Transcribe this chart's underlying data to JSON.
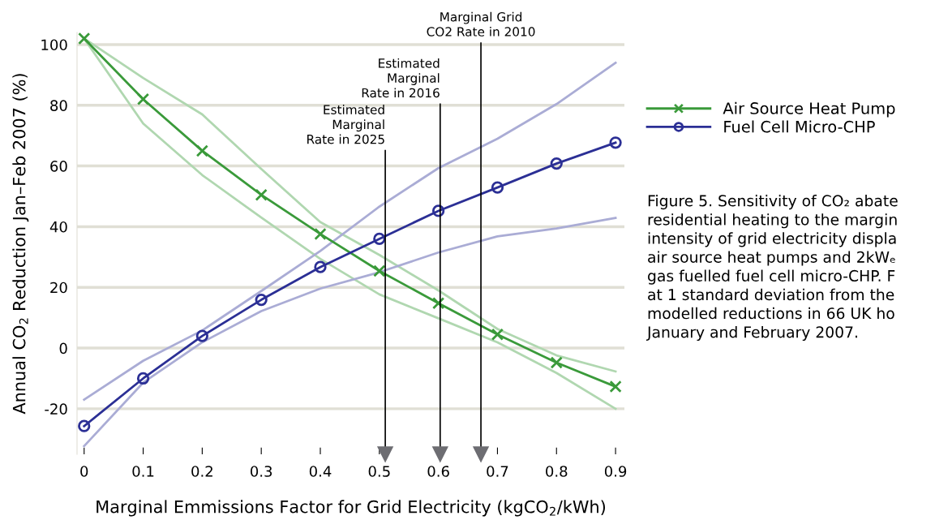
{
  "chart_data": {
    "type": "line",
    "xlabel": "Marginal Emmissions Factor for Grid Electricity (kgCO$_{2}$/kWh)",
    "ylabel": "Annual CO$_{2}$ Reduction Jan–Feb 2007 (%)",
    "x": [
      0,
      0.1,
      0.2,
      0.3,
      0.4,
      0.5,
      0.6,
      0.7,
      0.8,
      0.9
    ],
    "series": [
      {
        "color": "#b0d7b0",
        "marker": "none",
        "values": [
          102,
          89,
          77,
          59,
          41.5,
          30.7,
          19,
          6.3,
          -2.4,
          -7.7
        ]
      },
      {
        "color": "#b0d7b0",
        "marker": "none",
        "values": [
          102,
          74,
          57,
          43,
          29.4,
          17.7,
          9.8,
          1.9,
          -8.2,
          -20
        ]
      },
      {
        "color": "#aaacd5",
        "marker": "none",
        "values": [
          -17,
          -4.2,
          5.8,
          18.8,
          32,
          46.6,
          59.3,
          69,
          80.4,
          94
        ]
      },
      {
        "color": "#aaacd5",
        "marker": "none",
        "values": [
          -32.3,
          -11.4,
          1.9,
          12.2,
          19.6,
          25,
          31.5,
          36.8,
          39.4,
          42.9
        ]
      },
      {
        "name": "Air Source Heat Pump",
        "color": "#3a9a3a",
        "marker": "cross",
        "values": [
          102,
          82,
          65,
          50.5,
          37.6,
          25.4,
          14.8,
          4.5,
          -4.8,
          -12.7
        ]
      },
      {
        "name": "Fuel Cell Micro-CHP",
        "color": "#2b2f95",
        "marker": "circle",
        "values": [
          -25.7,
          -10,
          4,
          15.9,
          26.7,
          36,
          45.2,
          52.9,
          60.8,
          67.7
        ]
      }
    ],
    "xlim": [
      -0.012,
      0.915
    ],
    "ylim": [
      -35,
      104
    ],
    "xticks": [
      0,
      0.1,
      0.2,
      0.3,
      0.4,
      0.5,
      0.6,
      0.7,
      0.8,
      0.9
    ],
    "yticks": [
      -20,
      0,
      20,
      40,
      60,
      80,
      100
    ],
    "grid": "y",
    "legend": "right",
    "line_style": "solid",
    "ref_lines": [
      {
        "axis": "x",
        "value": 0.51,
        "label": "Estimated\nMarginal\nRate in 2025",
        "color": "#000000"
      },
      {
        "axis": "x",
        "value": 0.603,
        "label": "Estimated\nMarginal\nRate in 2016",
        "color": "#000000"
      },
      {
        "axis": "x",
        "value": 0.672,
        "label": "Marginal Grid\nCO2 Rate in 2010",
        "color": "#000000"
      }
    ],
    "annotations": [
      "Figure 5. Sensitivity of CO₂ abate\nresidential heating to the margin\nintensity of grid electricity displa\nair source heat pumps and 2kWₑ\ngas fuelled fuel cell micro-CHP. F\nat 1 standard deviation from the\nmodelled reductions in 66 UK ho\nJanuary and February 2007."
    ]
  }
}
